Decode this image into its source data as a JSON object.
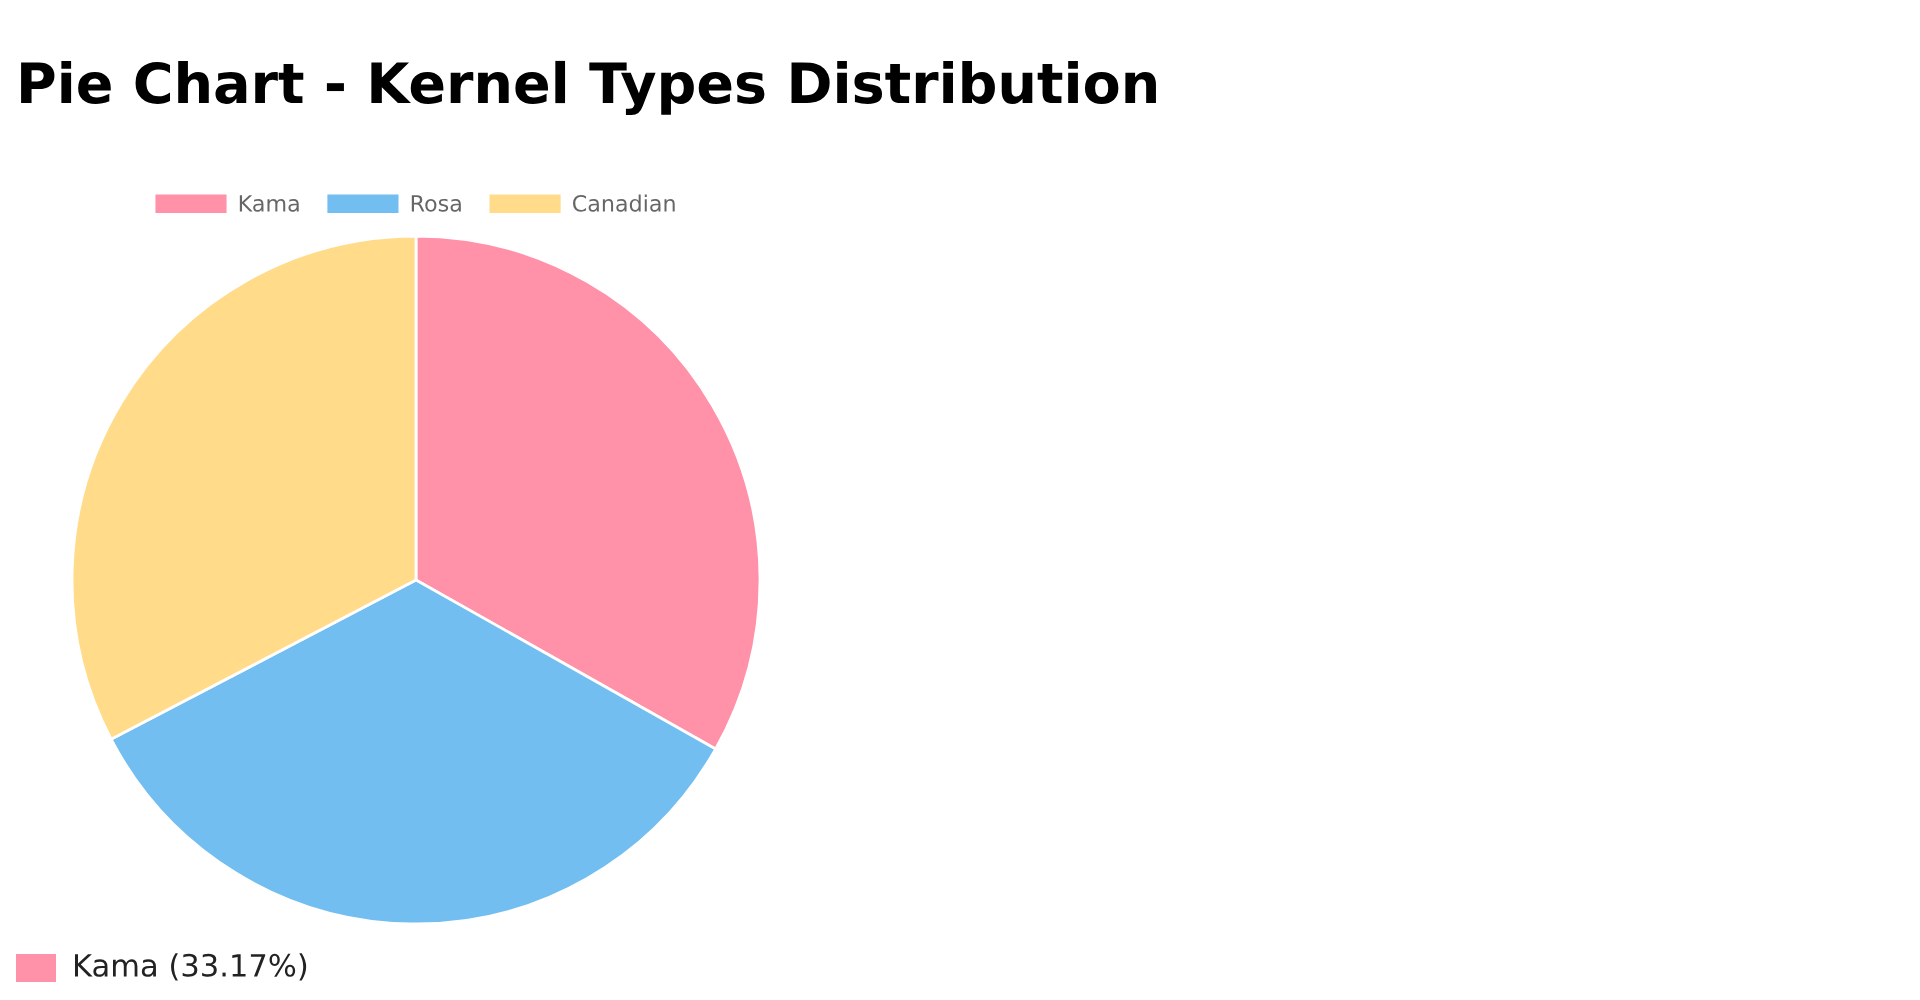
{
  "chart_data": {
    "type": "pie",
    "title": "Pie Chart - Kernel Types Distribution",
    "categories": [
      "Kama",
      "Rosa",
      "Canadian"
    ],
    "values": [
      33.17,
      34.17,
      32.66
    ],
    "colors": [
      "#ff91a9",
      "#72bef1",
      "#ffdb8a"
    ],
    "legend": "top",
    "annotations": [
      "Kama (33.17%)"
    ]
  }
}
